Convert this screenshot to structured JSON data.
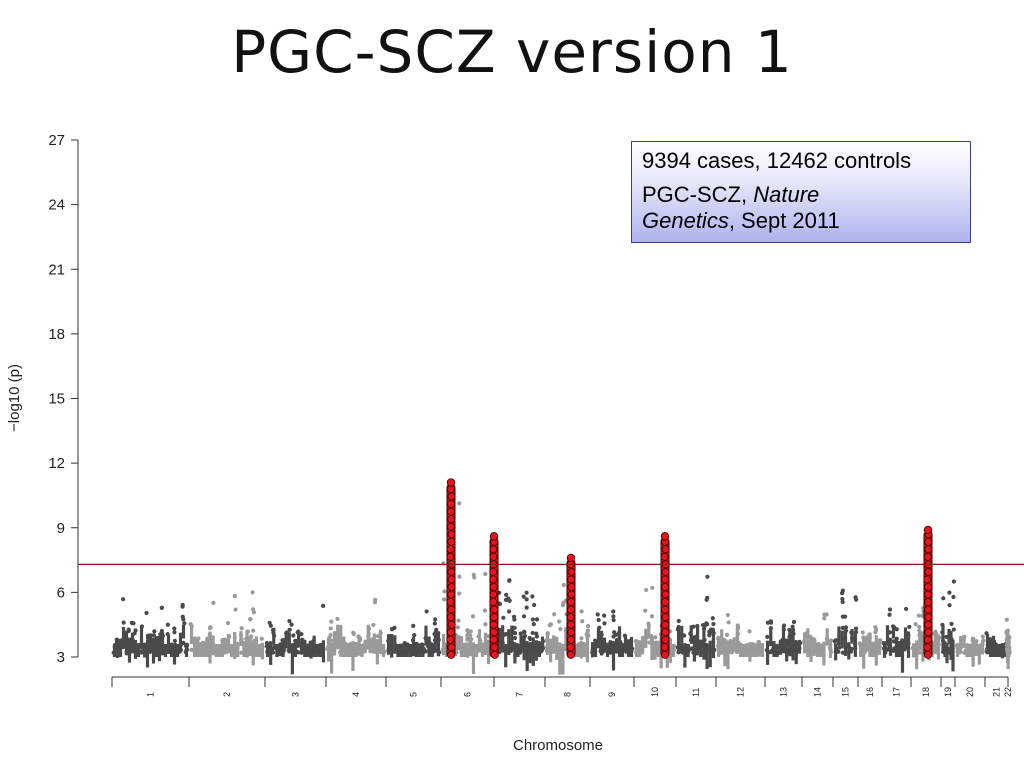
{
  "slide": {
    "title": "PGC-SCZ version 1"
  },
  "legend": {
    "line1": "9394 cases, 12462 controls",
    "line2_prefix": "PGC-SCZ, ",
    "line2_italic": "Nature",
    "line3_italic": "Genetics",
    "line3_suffix": ", Sept 2011"
  },
  "chart_data": {
    "type": "scatter",
    "subtype": "manhattan",
    "xlabel": "Chromosome",
    "ylabel": "−log10 (p)",
    "ylim": [
      3,
      27
    ],
    "yticks": [
      3,
      6,
      9,
      12,
      15,
      18,
      21,
      24,
      27
    ],
    "significance_threshold": 7.3,
    "significance_line_color": "#8b1a1a",
    "colors": {
      "dark_chr": "#4a4a4a",
      "light_chr": "#9a9a9a",
      "highlight": "#e8131b",
      "highlight_outline": "#3a0000"
    },
    "chromosomes": [
      {
        "label": "1",
        "peak": 6.1
      },
      {
        "label": "2",
        "peak": 6.5
      },
      {
        "label": "3",
        "peak": 6.0
      },
      {
        "label": "4",
        "peak": 6.0
      },
      {
        "label": "5",
        "peak": 5.8
      },
      {
        "label": "6",
        "peak": 11.1
      },
      {
        "label": "7",
        "peak": 8.6
      },
      {
        "label": "8",
        "peak": 7.6
      },
      {
        "label": "9",
        "peak": 5.5
      },
      {
        "label": "10",
        "peak": 8.6
      },
      {
        "label": "11",
        "peak": 7.3
      },
      {
        "label": "12",
        "peak": 5.5
      },
      {
        "label": "13",
        "peak": 5.2
      },
      {
        "label": "14",
        "peak": 6.3
      },
      {
        "label": "15",
        "peak": 6.8
      },
      {
        "label": "16",
        "peak": 5.0
      },
      {
        "label": "17",
        "peak": 6.4
      },
      {
        "label": "18",
        "peak": 8.9
      },
      {
        "label": "19",
        "peak": 7.0
      },
      {
        "label": "20",
        "peak": 4.6
      },
      {
        "label": "21",
        "peak": 5.8
      },
      {
        "label": "22",
        "peak": 5.5
      }
    ],
    "highlighted_loci": [
      {
        "chromosome": "6",
        "max": 11.1
      },
      {
        "chromosome": "7",
        "max": 8.6
      },
      {
        "chromosome": "8",
        "max": 7.6
      },
      {
        "chromosome": "10",
        "max": 8.6
      },
      {
        "chromosome": "18",
        "max": 8.9
      }
    ]
  }
}
